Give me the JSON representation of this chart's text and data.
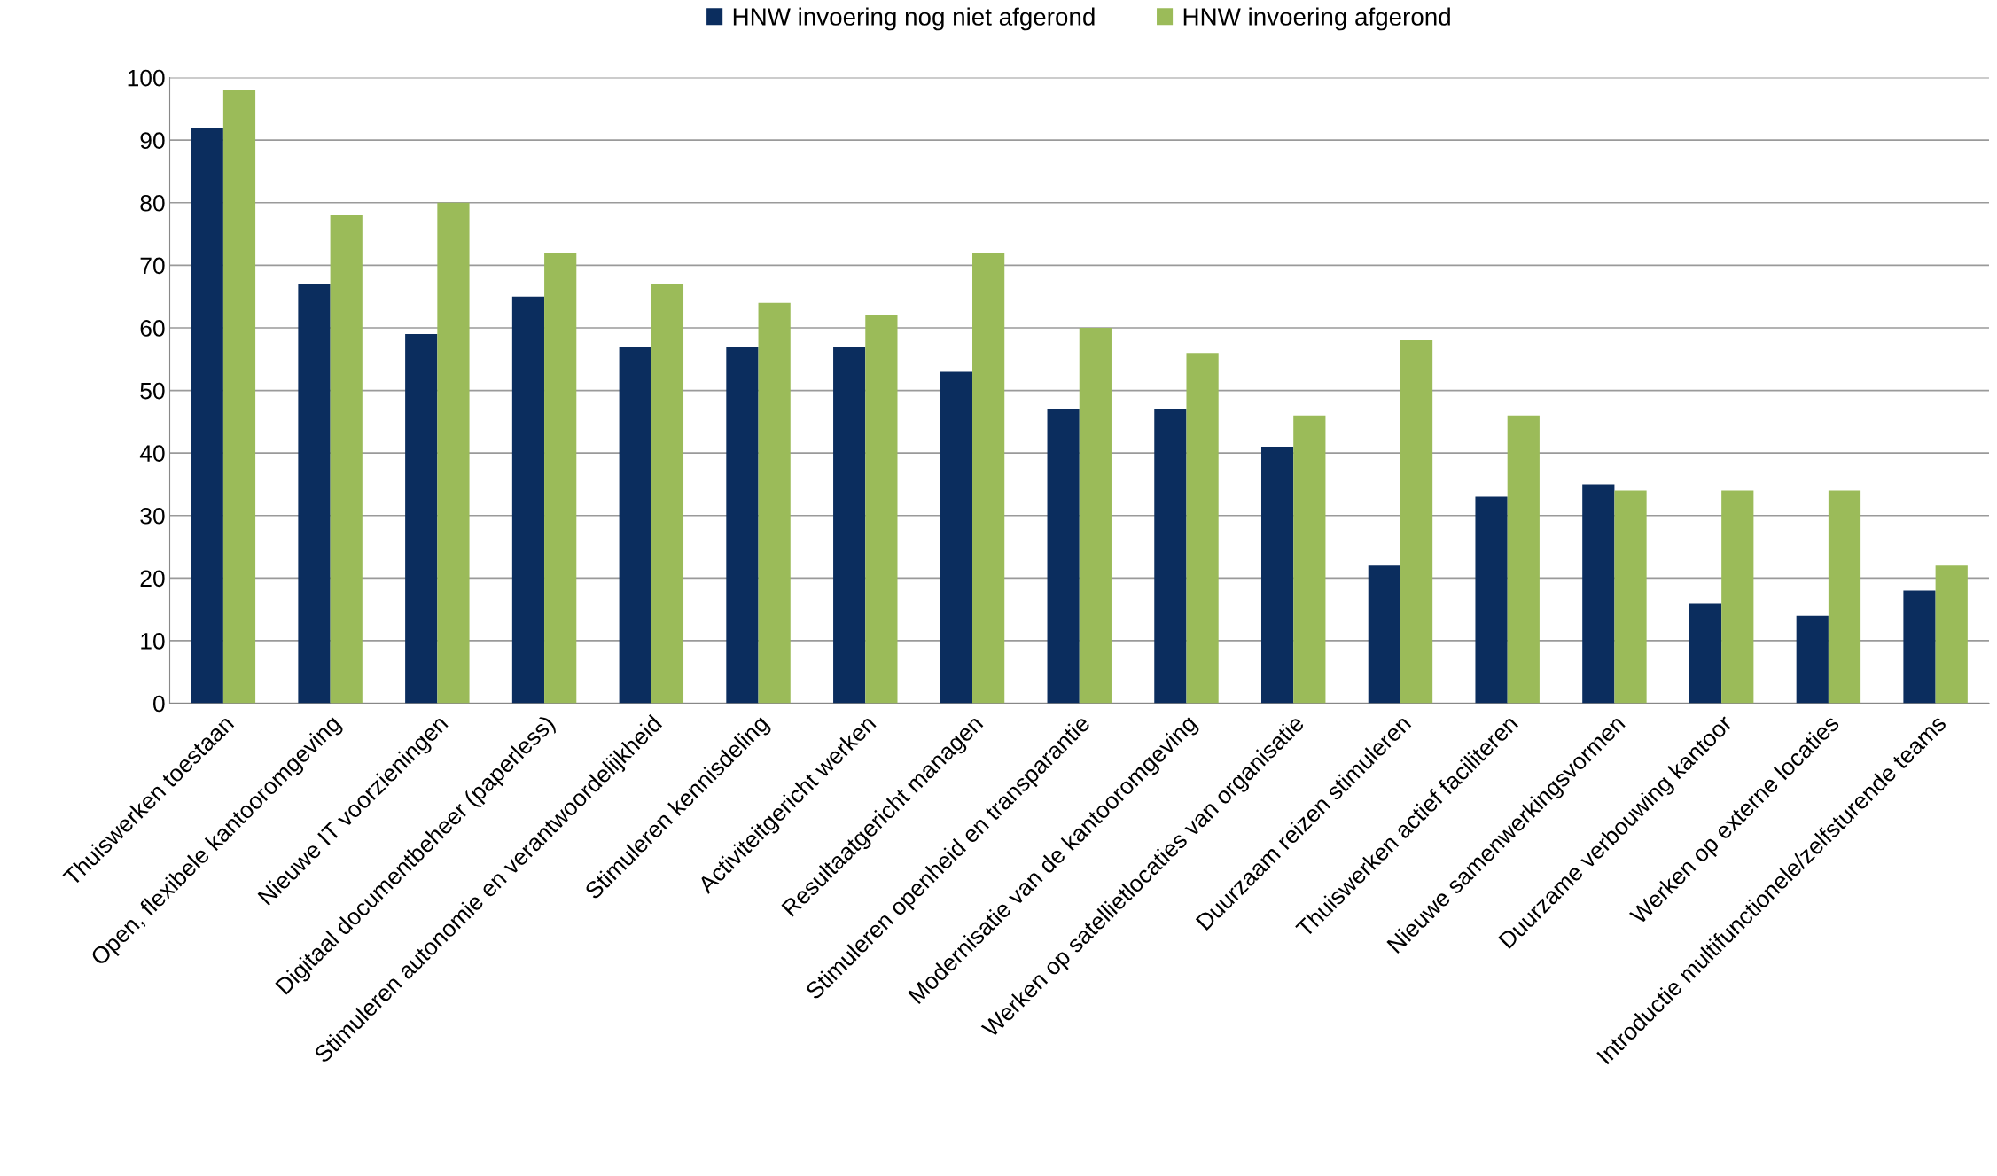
{
  "chart_data": {
    "type": "bar",
    "categories": [
      "Thuiswerken toestaan",
      "Open, flexibele kantooromgeving",
      "Nieuwe IT voorzieningen",
      "Digitaal documentbeheer (paperless)",
      "Stimuleren autonomie en verantwoordelijkheid",
      "Stimuleren kennisdeling",
      "Activiteitgericht werken",
      "Resultaatgericht managen",
      "Stimuleren openheid en transparantie",
      "Modernisatie van de kantooromgeving",
      "Werken op satellietlocaties van organisatie",
      "Duurzaam reizen stimuleren",
      "Thuiswerken actief faciliteren",
      "Nieuwe samenwerkingsvormen",
      "Duurzame verbouwing kantoor",
      "Werken op externe locaties",
      "Introductie multifunctionele/zelfsturende teams"
    ],
    "series": [
      {
        "name": "HNW invoering nog niet afgerond",
        "color": "#0b2d5e",
        "values": [
          92,
          67,
          59,
          65,
          57,
          57,
          57,
          53,
          47,
          47,
          41,
          22,
          33,
          35,
          16,
          14,
          18
        ]
      },
      {
        "name": "HNW invoering afgerond",
        "color": "#9bbb59",
        "values": [
          98,
          78,
          80,
          72,
          67,
          64,
          62,
          72,
          60,
          56,
          46,
          58,
          46,
          34,
          34,
          34,
          22
        ]
      }
    ],
    "ylim": [
      0,
      100
    ],
    "yticks": [
      0,
      10,
      20,
      30,
      40,
      50,
      60,
      70,
      80,
      90,
      100
    ],
    "grid": "y",
    "legend": "top"
  }
}
